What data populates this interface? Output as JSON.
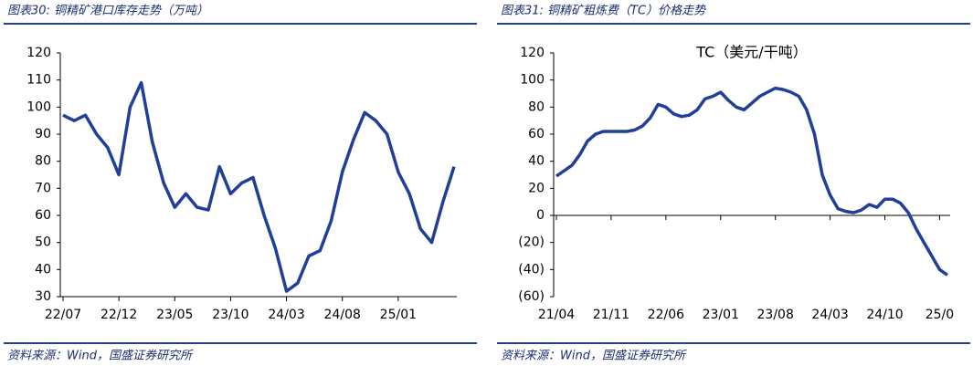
{
  "chart_data": [
    {
      "type": "line",
      "title": "图表30: 铜精矿港口库存走势（万吨）",
      "source": "资料来源：Wind，国盛证券研究所",
      "categories": [
        "22/07",
        null,
        null,
        null,
        null,
        "22/12",
        null,
        null,
        null,
        null,
        "23/05",
        null,
        null,
        null,
        null,
        "23/10",
        null,
        null,
        null,
        null,
        "24/03",
        null,
        null,
        null,
        null,
        "24/08",
        null,
        null,
        null,
        null,
        "25/01",
        null,
        null,
        null,
        null,
        null
      ],
      "series": [
        {
          "color": "#1f3f99",
          "values": [
            97,
            95,
            97,
            90,
            85,
            75,
            100,
            109,
            87,
            72,
            63,
            68,
            63,
            62,
            78,
            68,
            72,
            74,
            60,
            48,
            32,
            35,
            45,
            47,
            58,
            76,
            88,
            98,
            95,
            90,
            76,
            68,
            55,
            50,
            65,
            78
          ]
        }
      ],
      "ylim": [
        30,
        120
      ],
      "yticks": [
        30,
        40,
        50,
        60,
        70,
        80,
        90,
        100,
        110,
        120
      ]
    },
    {
      "type": "line",
      "title": "图表31: 铜精矿粗炼费（TC）价格走势",
      "subtitle": "TC（美元/干吨）",
      "source": "资料来源：Wind，国盛证券研究所",
      "categories": [
        "21/04",
        null,
        null,
        null,
        null,
        null,
        null,
        "21/11",
        null,
        null,
        null,
        null,
        null,
        null,
        "22/06",
        null,
        null,
        null,
        null,
        null,
        null,
        "23/01",
        null,
        null,
        null,
        null,
        null,
        null,
        "23/08",
        null,
        null,
        null,
        null,
        null,
        null,
        "24/03",
        null,
        null,
        null,
        null,
        null,
        null,
        "24/10",
        null,
        null,
        null,
        null,
        null,
        null,
        "25/0",
        null
      ],
      "series": [
        {
          "color": "#1f3f99",
          "values": [
            29,
            33,
            37,
            45,
            55,
            60,
            62,
            62,
            62,
            62,
            63,
            66,
            72,
            82,
            80,
            75,
            73,
            74,
            78,
            86,
            88,
            91,
            85,
            80,
            78,
            83,
            88,
            91,
            94,
            93,
            91,
            88,
            78,
            60,
            30,
            15,
            5,
            3,
            2,
            4,
            8,
            6,
            12,
            12,
            9,
            2,
            -10,
            -20,
            -30,
            -40,
            -44
          ]
        }
      ],
      "ylim": [
        -60,
        120
      ],
      "yticks": [
        {
          "value": -60,
          "label": "(60)"
        },
        {
          "value": -40,
          "label": "(40)"
        },
        {
          "value": -20,
          "label": "(20)"
        },
        0,
        20,
        40,
        60,
        80,
        100,
        120
      ],
      "negative_tick_color": "#e00000"
    }
  ]
}
